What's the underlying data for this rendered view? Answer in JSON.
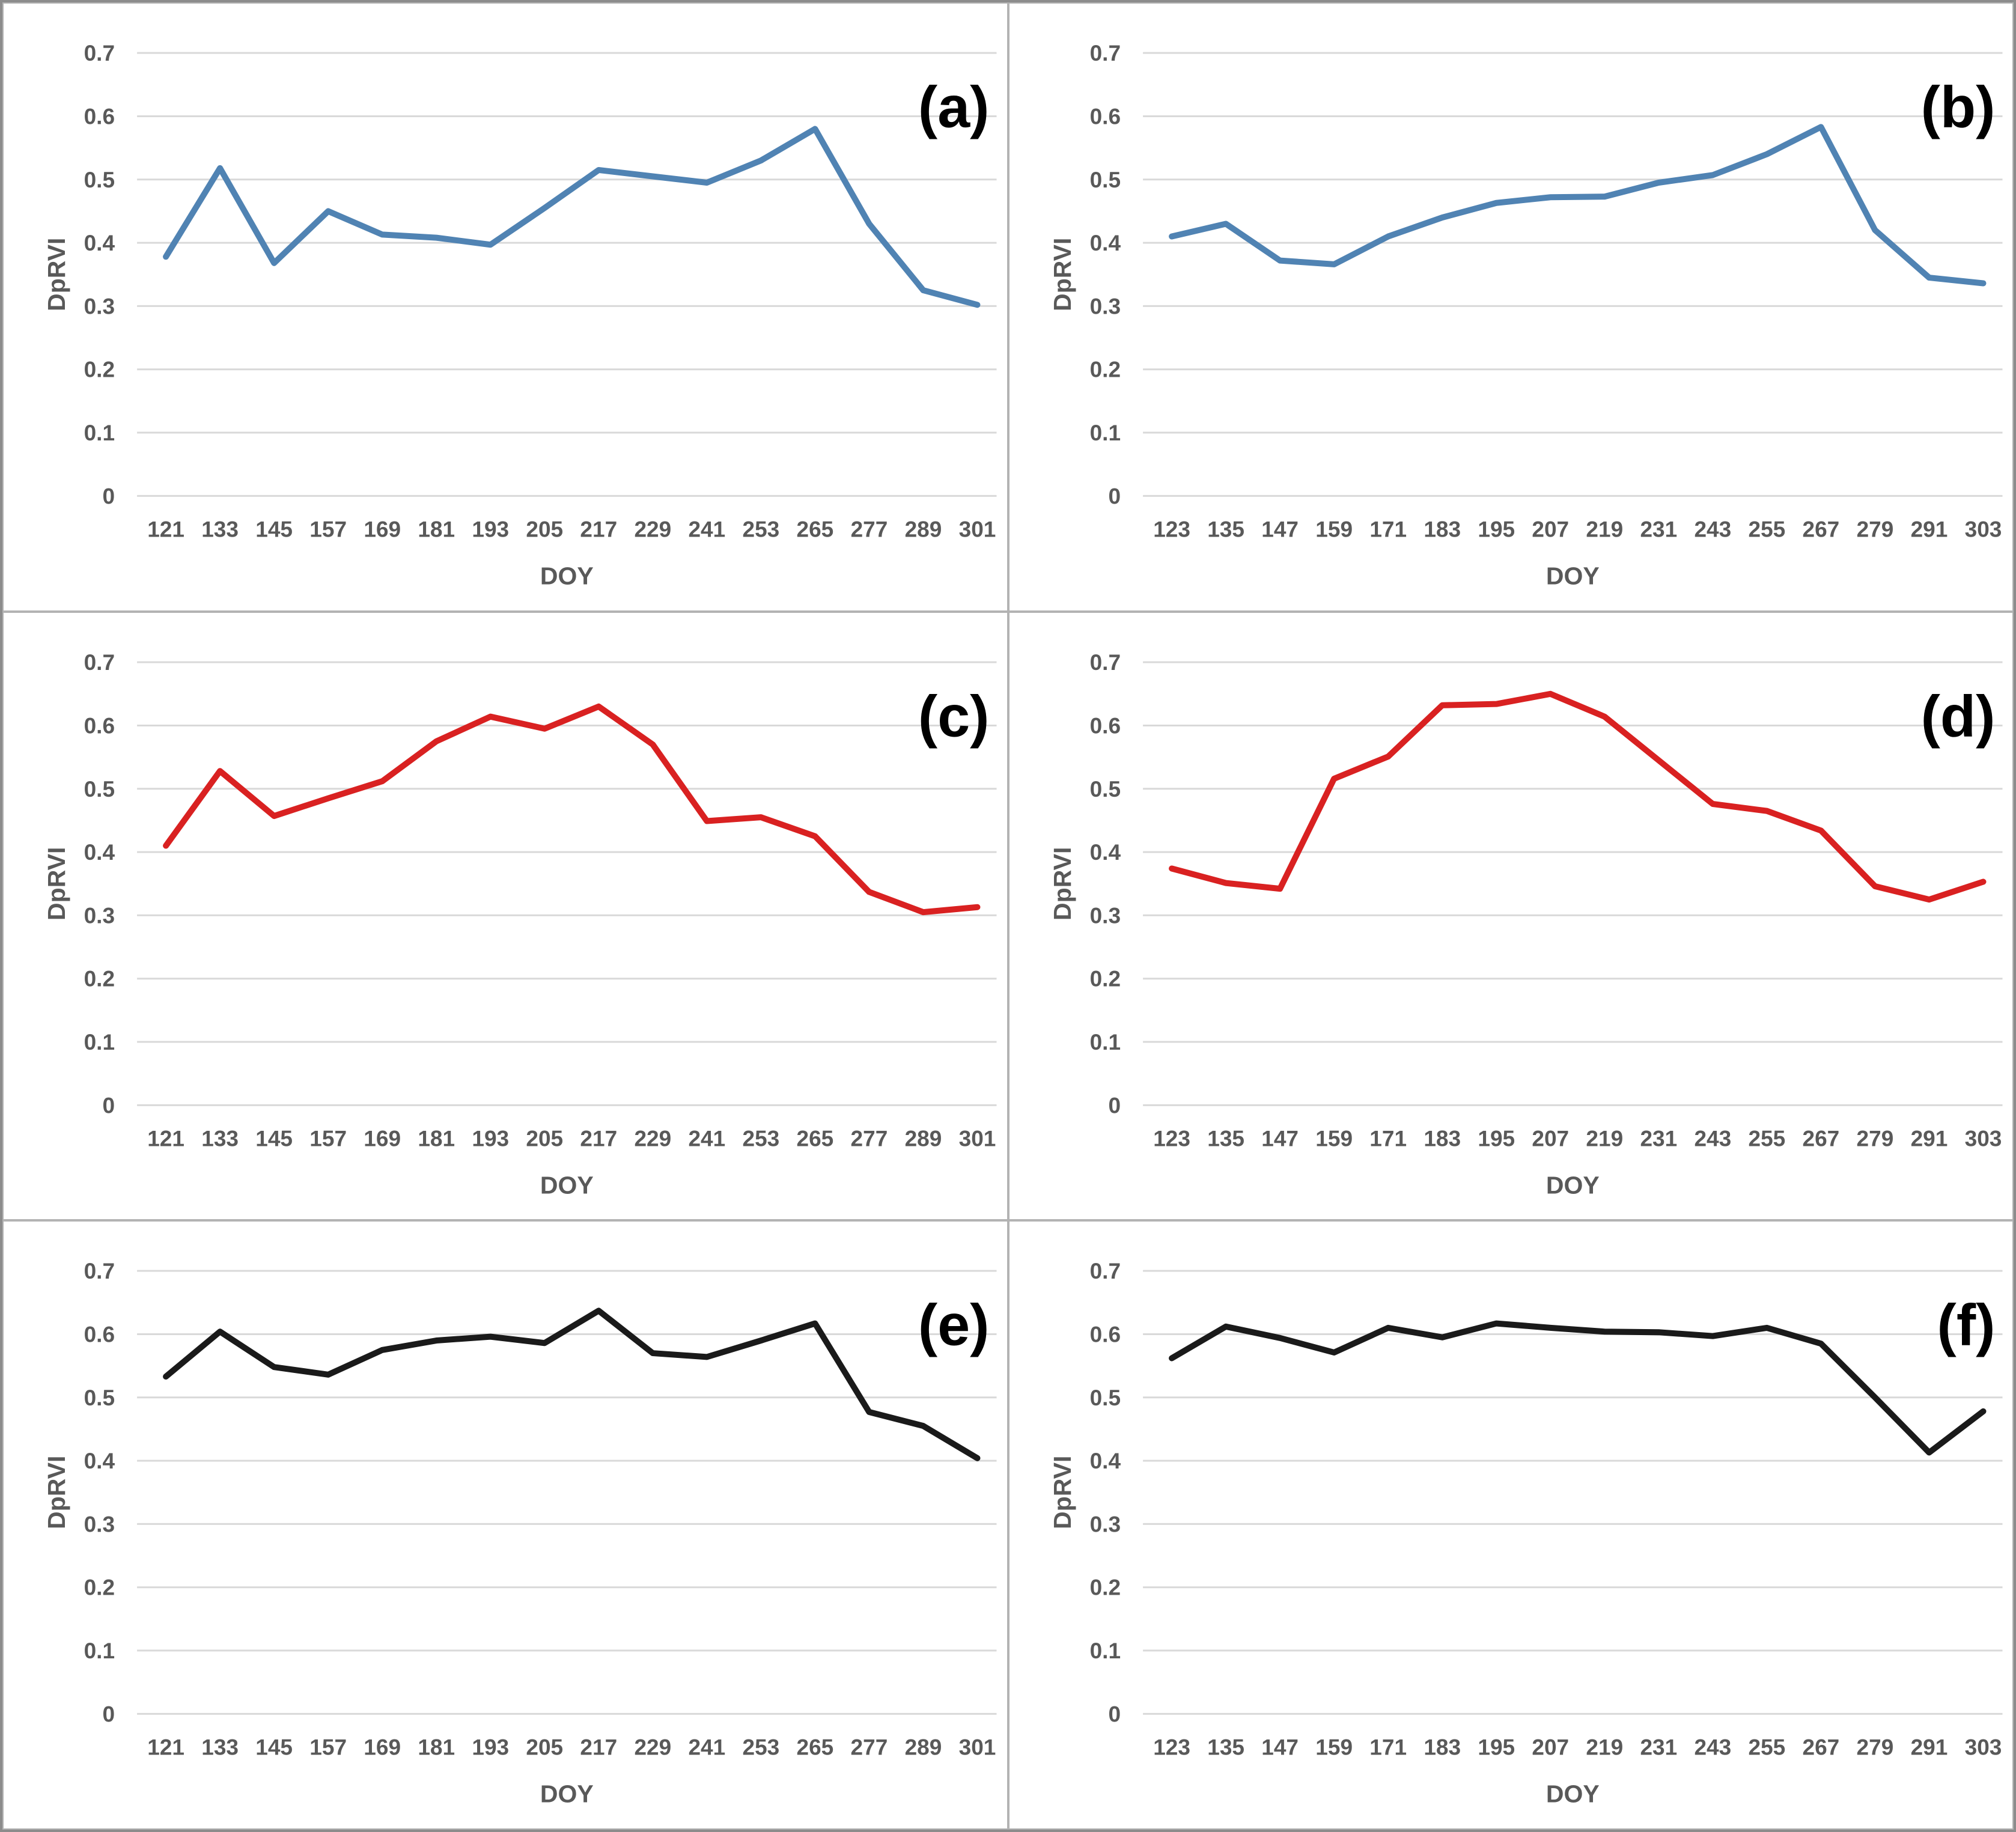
{
  "figure": {
    "description_visible_text_only": true,
    "y_axis_title": "DpRVI",
    "x_axis_title": "DOY",
    "colors": {
      "blue_series": "#5083B3",
      "red_series": "#D92121",
      "black_series": "#1A1A1A",
      "gridline": "#D9D9D9",
      "tick_label": "#595959",
      "panel_border": "#b3b3b3",
      "outer_border": "#8c8c8c",
      "panel_letter": "#000000"
    }
  },
  "chart_data": [
    {
      "type": "line",
      "panel_letter": "(a)",
      "line_color": "#5083B3",
      "xlabel": "DOY",
      "ylabel": "DpRVI",
      "ylim": [
        0,
        0.7
      ],
      "yticks": [
        0,
        0.1,
        0.2,
        0.3,
        0.4,
        0.5,
        0.6,
        0.7
      ],
      "grid": "horizontal",
      "legend_position": "none",
      "categories": [
        121,
        133,
        145,
        157,
        169,
        181,
        193,
        205,
        217,
        229,
        241,
        253,
        265,
        277,
        289,
        301
      ],
      "values": [
        0.378,
        0.518,
        0.368,
        0.45,
        0.413,
        0.408,
        0.397,
        0.455,
        0.515,
        0.505,
        0.495,
        0.53,
        0.58,
        0.43,
        0.325,
        0.302
      ]
    },
    {
      "type": "line",
      "panel_letter": "(b)",
      "line_color": "#5083B3",
      "xlabel": "DOY",
      "ylabel": "DpRVI",
      "ylim": [
        0,
        0.7
      ],
      "yticks": [
        0,
        0.1,
        0.2,
        0.3,
        0.4,
        0.5,
        0.6,
        0.7
      ],
      "grid": "horizontal",
      "legend_position": "none",
      "categories": [
        123,
        135,
        147,
        159,
        171,
        183,
        195,
        207,
        219,
        231,
        243,
        255,
        267,
        279,
        291,
        303
      ],
      "values": [
        0.41,
        0.43,
        0.372,
        0.366,
        0.41,
        0.44,
        0.463,
        0.472,
        0.473,
        0.495,
        0.507,
        0.54,
        0.583,
        0.42,
        0.345,
        0.336
      ]
    },
    {
      "type": "line",
      "panel_letter": "(c)",
      "line_color": "#D92121",
      "xlabel": "DOY",
      "ylabel": "DpRVI",
      "ylim": [
        0,
        0.7
      ],
      "yticks": [
        0,
        0.1,
        0.2,
        0.3,
        0.4,
        0.5,
        0.6,
        0.7
      ],
      "grid": "horizontal",
      "legend_position": "none",
      "categories": [
        121,
        133,
        145,
        157,
        169,
        181,
        193,
        205,
        217,
        229,
        241,
        253,
        265,
        277,
        289,
        301
      ],
      "values": [
        0.41,
        0.528,
        0.457,
        0.485,
        0.512,
        0.575,
        0.614,
        0.595,
        0.63,
        0.57,
        0.449,
        0.455,
        0.425,
        0.337,
        0.305,
        0.313
      ]
    },
    {
      "type": "line",
      "panel_letter": "(d)",
      "line_color": "#D92121",
      "xlabel": "DOY",
      "ylabel": "DpRVI",
      "ylim": [
        0,
        0.7
      ],
      "yticks": [
        0,
        0.1,
        0.2,
        0.3,
        0.4,
        0.5,
        0.6,
        0.7
      ],
      "grid": "horizontal",
      "legend_position": "none",
      "categories": [
        123,
        135,
        147,
        159,
        171,
        183,
        195,
        207,
        219,
        231,
        243,
        255,
        267,
        279,
        291,
        303
      ],
      "values": [
        0.374,
        0.351,
        0.342,
        0.516,
        0.551,
        0.632,
        0.634,
        0.65,
        0.614,
        0.545,
        0.476,
        0.465,
        0.434,
        0.346,
        0.325,
        0.353
      ]
    },
    {
      "type": "line",
      "panel_letter": "(e)",
      "line_color": "#1A1A1A",
      "xlabel": "DOY",
      "ylabel": "DpRVI",
      "ylim": [
        0,
        0.7
      ],
      "yticks": [
        0,
        0.1,
        0.2,
        0.3,
        0.4,
        0.5,
        0.6,
        0.7
      ],
      "grid": "horizontal",
      "legend_position": "none",
      "categories": [
        121,
        133,
        145,
        157,
        169,
        181,
        193,
        205,
        217,
        229,
        241,
        253,
        265,
        277,
        289,
        301
      ],
      "values": [
        0.533,
        0.604,
        0.548,
        0.536,
        0.575,
        0.59,
        0.596,
        0.586,
        0.637,
        0.57,
        0.564,
        0.59,
        0.617,
        0.477,
        0.455,
        0.404
      ]
    },
    {
      "type": "line",
      "panel_letter": "(f)",
      "line_color": "#1A1A1A",
      "xlabel": "DOY",
      "ylabel": "DpRVI",
      "ylim": [
        0,
        0.7
      ],
      "yticks": [
        0,
        0.1,
        0.2,
        0.3,
        0.4,
        0.5,
        0.6,
        0.7
      ],
      "grid": "horizontal",
      "legend_position": "none",
      "categories": [
        123,
        135,
        147,
        159,
        171,
        183,
        195,
        207,
        219,
        231,
        243,
        255,
        267,
        279,
        291,
        303
      ],
      "values": [
        0.562,
        0.612,
        0.594,
        0.571,
        0.61,
        0.595,
        0.617,
        0.61,
        0.604,
        0.603,
        0.597,
        0.61,
        0.585,
        0.5,
        0.413,
        0.478
      ]
    }
  ]
}
